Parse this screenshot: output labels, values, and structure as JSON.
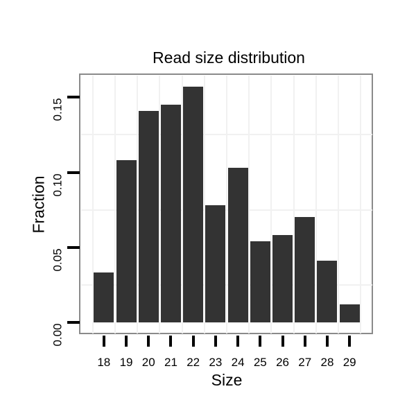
{
  "chart_data": {
    "type": "bar",
    "title": "Read size distribution",
    "xlabel": "Size",
    "ylabel": "Fraction",
    "categories": [
      18,
      19,
      20,
      21,
      22,
      23,
      24,
      25,
      26,
      27,
      28,
      29
    ],
    "values": [
      0.033,
      0.108,
      0.141,
      0.145,
      0.157,
      0.078,
      0.103,
      0.054,
      0.058,
      0.07,
      0.041,
      0.012
    ],
    "bar_width": 0.9,
    "xlim": [
      16.95,
      30.05
    ],
    "ylim": [
      -0.008,
      0.165
    ],
    "y_ticks": [
      {
        "value": 0.0,
        "label": "0.00"
      },
      {
        "value": 0.05,
        "label": "0.05"
      },
      {
        "value": 0.1,
        "label": "0.10"
      },
      {
        "value": 0.15,
        "label": "0.15"
      }
    ],
    "x_minor_gridlines": [
      17.5,
      18.5,
      19.5,
      20.5,
      21.5,
      22.5,
      23.5,
      24.5,
      25.5,
      26.5,
      27.5,
      28.5,
      29.5
    ],
    "y_minor_gridlines": [
      0.025,
      0.075,
      0.125
    ],
    "grid": "minor gridlines only, light gray, on white panel",
    "legend": "none",
    "colors": {
      "bar": "#333333",
      "grid": "#f1f1f1",
      "panel_border": "#8a8a8a",
      "text": "#000000",
      "background": "#ffffff"
    }
  }
}
